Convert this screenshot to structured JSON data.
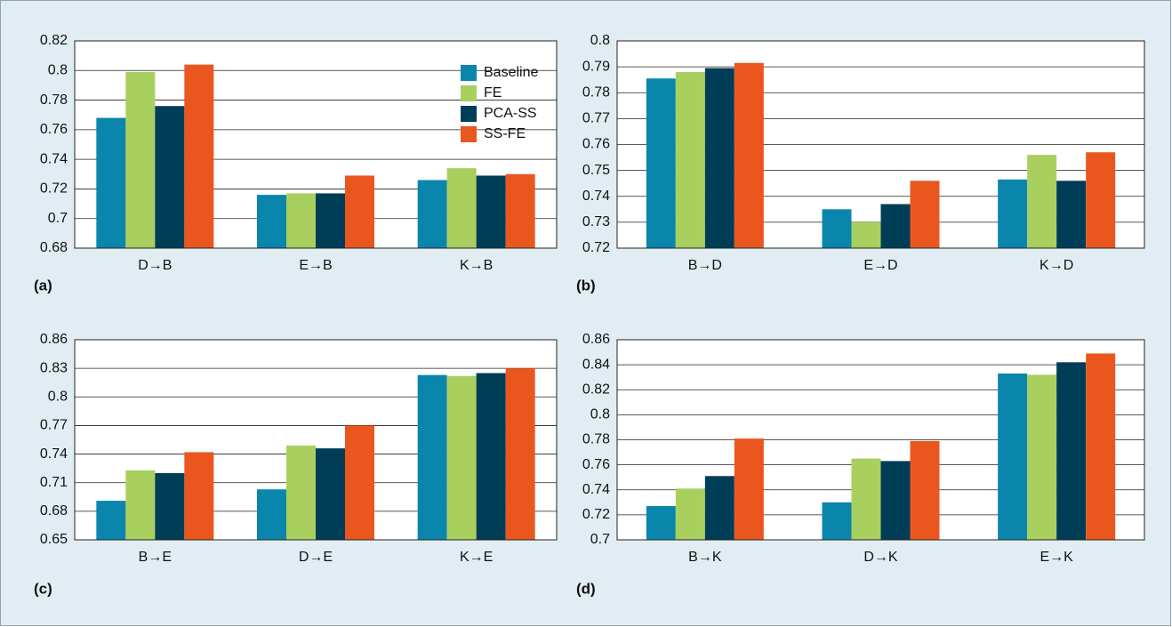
{
  "chart_data": [
    {
      "type": "bar",
      "panel_label": "(a)",
      "categories": [
        "D→B",
        "E→B",
        "K→B"
      ],
      "series": [
        {
          "name": "Baseline",
          "color": "#0a86ad",
          "values": [
            0.768,
            0.716,
            0.726
          ]
        },
        {
          "name": "FE",
          "color": "#a9cf5f",
          "values": [
            0.799,
            0.717,
            0.734
          ]
        },
        {
          "name": "PCA-SS",
          "color": "#003d57",
          "values": [
            0.776,
            0.717,
            0.729
          ]
        },
        {
          "name": "SS-FE",
          "color": "#e9571f",
          "values": [
            0.804,
            0.729,
            0.73
          ]
        }
      ],
      "ylim": [
        0.68,
        0.82
      ],
      "yticks": [
        0.68,
        0.7,
        0.72,
        0.74,
        0.76,
        0.78,
        0.8,
        0.82
      ],
      "grid": true,
      "legend": "upper right"
    },
    {
      "type": "bar",
      "panel_label": "(b)",
      "categories": [
        "B→D",
        "E→D",
        "K→D"
      ],
      "series": [
        {
          "color": "#0a86ad",
          "values": [
            0.7855,
            0.735,
            0.7465
          ]
        },
        {
          "color": "#a9cf5f",
          "values": [
            0.788,
            0.73,
            0.756
          ]
        },
        {
          "color": "#003d57",
          "values": [
            0.7895,
            0.737,
            0.746
          ]
        },
        {
          "color": "#e9571f",
          "values": [
            0.7915,
            0.746,
            0.757
          ]
        }
      ],
      "ylim": [
        0.72,
        0.8
      ],
      "yticks": [
        0.72,
        0.73,
        0.74,
        0.75,
        0.76,
        0.77,
        0.78,
        0.79,
        0.8
      ],
      "grid": true
    },
    {
      "type": "bar",
      "panel_label": "(c)",
      "categories": [
        "B→E",
        "D→E",
        "K→E"
      ],
      "series": [
        {
          "color": "#0a86ad",
          "values": [
            0.691,
            0.703,
            0.823
          ]
        },
        {
          "color": "#a9cf5f",
          "values": [
            0.723,
            0.749,
            0.822
          ]
        },
        {
          "color": "#003d57",
          "values": [
            0.72,
            0.746,
            0.825
          ]
        },
        {
          "color": "#e9571f",
          "values": [
            0.742,
            0.77,
            0.83
          ]
        }
      ],
      "ylim": [
        0.65,
        0.86
      ],
      "yticks": [
        0.65,
        0.68,
        0.71,
        0.74,
        0.77,
        0.8,
        0.83,
        0.86
      ],
      "grid": true
    },
    {
      "type": "bar",
      "panel_label": "(d)",
      "categories": [
        "B→K",
        "D→K",
        "E→K"
      ],
      "series": [
        {
          "color": "#0a86ad",
          "values": [
            0.727,
            0.73,
            0.833
          ]
        },
        {
          "color": "#a9cf5f",
          "values": [
            0.741,
            0.765,
            0.832
          ]
        },
        {
          "color": "#003d57",
          "values": [
            0.751,
            0.763,
            0.842
          ]
        },
        {
          "color": "#e9571f",
          "values": [
            0.781,
            0.779,
            0.849
          ]
        }
      ],
      "ylim": [
        0.7,
        0.86
      ],
      "yticks": [
        0.7,
        0.72,
        0.74,
        0.76,
        0.78,
        0.8,
        0.82,
        0.84,
        0.86
      ],
      "grid": true
    }
  ]
}
